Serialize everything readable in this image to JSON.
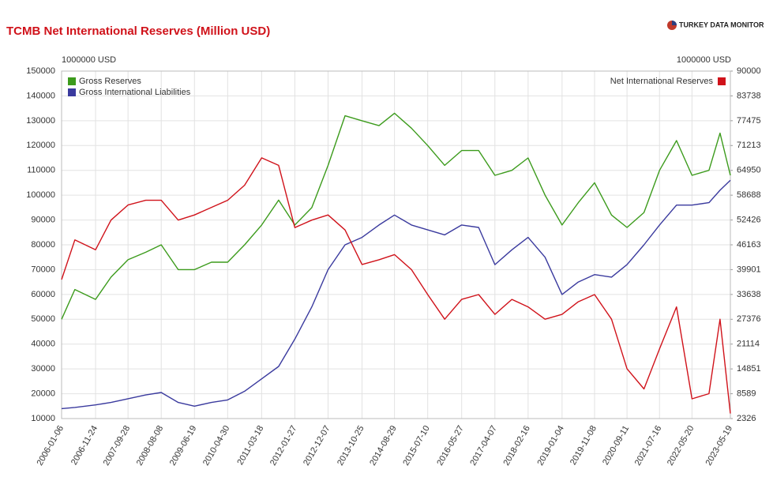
{
  "chart_data": {
    "type": "line",
    "title": "TCMB Net International Reserves (Million USD)",
    "brand": "TURKEY DATA MONITOR",
    "y_unit_label": "1000000 USD",
    "y2_unit_label": "1000000 USD",
    "x": [
      "2006-01-06",
      "2006-05-12",
      "2006-11-24",
      "2007-04-20",
      "2007-09-28",
      "2008-03-14",
      "2008-08-08",
      "2009-01-16",
      "2009-06-19",
      "2009-11-27",
      "2010-04-30",
      "2010-10-08",
      "2011-03-18",
      "2011-08-26",
      "2012-01-27",
      "2012-07-06",
      "2012-12-07",
      "2013-05-17",
      "2013-10-25",
      "2014-04-04",
      "2014-08-29",
      "2015-02-06",
      "2015-07-10",
      "2015-12-18",
      "2016-05-27",
      "2016-11-04",
      "2017-04-07",
      "2017-09-15",
      "2018-02-16",
      "2018-07-27",
      "2019-01-04",
      "2019-06-07",
      "2019-11-08",
      "2020-04-17",
      "2020-09-11",
      "2021-02-19",
      "2021-07-16",
      "2021-12-24",
      "2022-05-20",
      "2022-10-28",
      "2023-02-10",
      "2023-05-19"
    ],
    "xlim": [
      "2006-01-06",
      "2023-05-19"
    ],
    "xticks": [
      "2006-01-06",
      "2006-11-24",
      "2007-09-28",
      "2008-08-08",
      "2009-06-19",
      "2010-04-30",
      "2011-03-18",
      "2012-01-27",
      "2012-12-07",
      "2013-10-25",
      "2014-08-29",
      "2015-07-10",
      "2016-05-27",
      "2017-04-07",
      "2018-02-16",
      "2019-01-04",
      "2019-11-08",
      "2020-09-11",
      "2021-07-16",
      "2022-05-20",
      "2023-05-19"
    ],
    "series": [
      {
        "name": "Gross Reserves",
        "color": "#3c9b1c",
        "values": [
          50000,
          62000,
          58000,
          67000,
          74000,
          77000,
          80000,
          70000,
          70000,
          73000,
          73000,
          80000,
          88000,
          98000,
          88000,
          95000,
          112000,
          132000,
          130000,
          128000,
          133000,
          127000,
          120000,
          112000,
          118000,
          118000,
          108000,
          110000,
          115000,
          100000,
          88000,
          97000,
          105000,
          92000,
          87000,
          93000,
          110000,
          122000,
          108000,
          110000,
          125000,
          108000
        ]
      },
      {
        "name": "Gross International Liabilities",
        "color": "#3a3a9e",
        "values": [
          14000,
          14500,
          15500,
          16500,
          18000,
          19500,
          20500,
          16500,
          15000,
          16500,
          17500,
          21000,
          26000,
          31000,
          42000,
          55000,
          70000,
          80000,
          83000,
          88000,
          92000,
          88000,
          86000,
          84000,
          88000,
          87000,
          72000,
          78000,
          83000,
          75000,
          60000,
          65000,
          68000,
          67000,
          72000,
          80000,
          88000,
          96000,
          96000,
          97000,
          102000,
          106000
        ]
      },
      {
        "name": "Net International Reserves",
        "color": "#d0121a",
        "axis": "y2",
        "values": [
          37400,
          47400,
          44900,
          52400,
          56200,
          57400,
          57400,
          52400,
          53700,
          55600,
          57400,
          61200,
          68100,
          66200,
          50500,
          52400,
          53700,
          49900,
          41200,
          42400,
          43700,
          39900,
          33600,
          27400,
          32400,
          33600,
          28600,
          32400,
          30500,
          27400,
          28600,
          31800,
          33600,
          27400,
          14900,
          9800,
          19900,
          30500,
          7300,
          8600,
          27400,
          3600
        ]
      }
    ],
    "ylim": [
      10000,
      150000
    ],
    "yticks": [
      10000,
      20000,
      30000,
      40000,
      50000,
      60000,
      70000,
      80000,
      90000,
      100000,
      110000,
      120000,
      130000,
      140000,
      150000
    ],
    "y2lim": [
      2326,
      90000
    ],
    "y2ticks": [
      2326,
      8589,
      14851,
      21114,
      27376,
      33638,
      39901,
      46163,
      52426,
      58688,
      64950,
      71213,
      77475,
      83738,
      90000
    ],
    "grid": true,
    "legend": "upper left"
  }
}
